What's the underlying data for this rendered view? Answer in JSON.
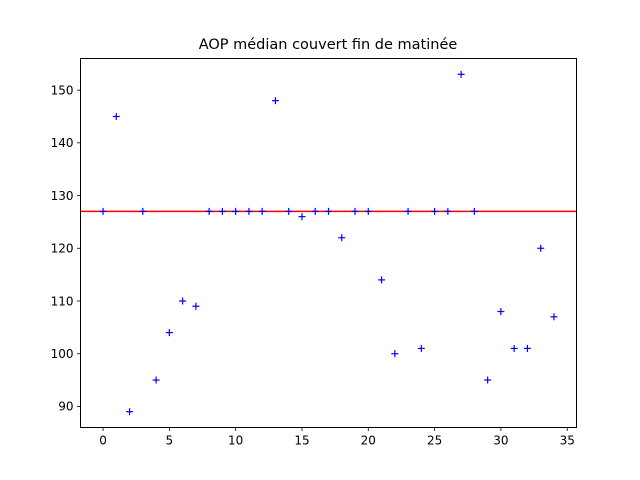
{
  "chart_data": {
    "type": "scatter",
    "title": "AOP médian couvert fin de matinée",
    "xlabel": "",
    "ylabel": "",
    "xlim": [
      -1.7,
      35.7
    ],
    "ylim": [
      86,
      156
    ],
    "xticks": [
      0,
      5,
      10,
      15,
      20,
      25,
      30,
      35
    ],
    "yticks": [
      90,
      100,
      110,
      120,
      130,
      140,
      150
    ],
    "grid": false,
    "legend": "none",
    "series": [
      {
        "marker": "+",
        "color": "#0000ff",
        "x": [
          0,
          1,
          2,
          3,
          4,
          5,
          6,
          7,
          8,
          9,
          10,
          11,
          12,
          13,
          14,
          15,
          16,
          17,
          18,
          19,
          20,
          21,
          22,
          23,
          24,
          25,
          26,
          27,
          28,
          29,
          30,
          31,
          32,
          33,
          34
        ],
        "y": [
          127,
          145,
          89,
          127,
          95,
          104,
          110,
          109,
          127,
          127,
          127,
          127,
          127,
          148,
          127,
          126,
          127,
          127,
          122,
          127,
          127,
          114,
          100,
          127,
          101,
          127,
          127,
          153,
          127,
          95,
          108,
          101,
          101,
          120,
          107
        ]
      }
    ],
    "hline": {
      "y": 127,
      "color": "#ff0000"
    }
  }
}
